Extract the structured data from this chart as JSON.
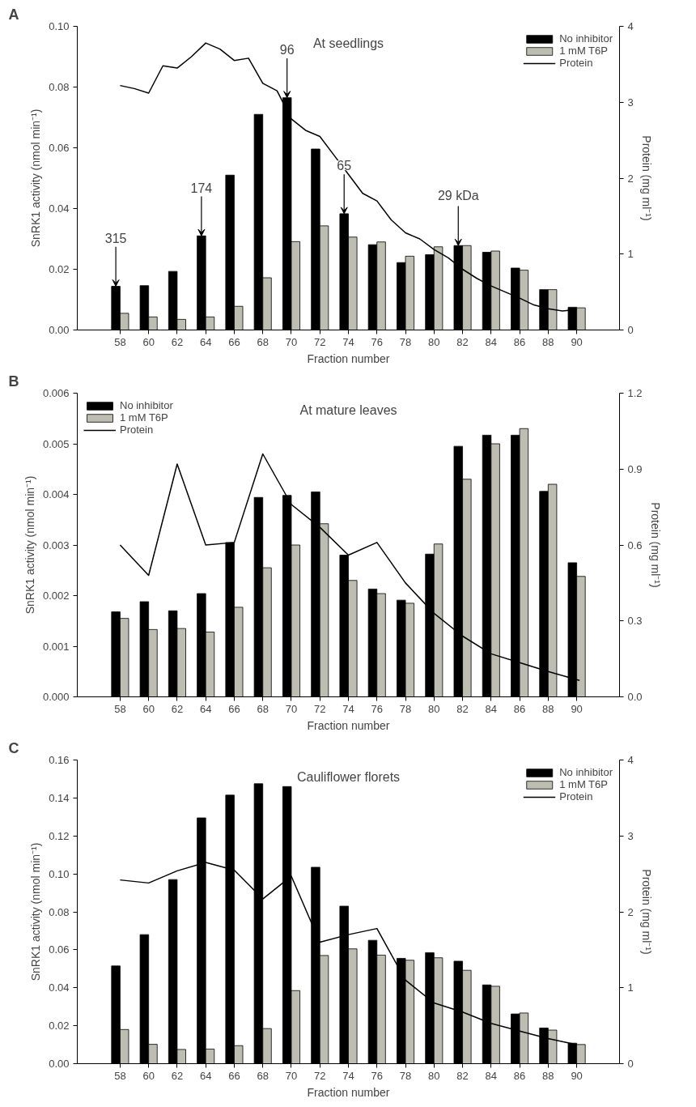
{
  "chart_data": [
    {
      "type": "bar",
      "title": "At seedlings",
      "xlabel": "Fraction number",
      "ylabel": "SnRK1 activity (nmol min⁻¹)",
      "y2label": "Protein (mg ml⁻¹)",
      "annotations": [
        "A",
        {
          "text": "315",
          "x": 57.7,
          "y": 0.0144
        },
        {
          "text": "174",
          "x": 63.7,
          "y": 0.031
        },
        {
          "text": "96",
          "x": 69.7,
          "y": 0.0765
        },
        {
          "text": "65",
          "x": 73.7,
          "y": 0.0383
        },
        {
          "text": "29 kDa",
          "x": 81.7,
          "y": 0.0278
        }
      ],
      "x": [
        58,
        60,
        62,
        64,
        66,
        68,
        70,
        72,
        74,
        76,
        78,
        80,
        82,
        84,
        86,
        88,
        90
      ],
      "xlim": [
        55,
        93
      ],
      "xticks": [
        58,
        60,
        62,
        64,
        66,
        68,
        70,
        72,
        74,
        76,
        78,
        80,
        82,
        84,
        86,
        88,
        90
      ],
      "ylim": [
        0,
        0.1
      ],
      "yticks": [
        {
          "value": 0,
          "label": "0.00"
        },
        {
          "value": 0.02,
          "label": "0.02"
        },
        {
          "value": 0.04,
          "label": "0.04"
        },
        {
          "value": 0.06,
          "label": "0.06"
        },
        {
          "value": 0.08,
          "label": "0.08"
        },
        {
          "value": 0.1,
          "label": "0.10"
        }
      ],
      "y2lim": [
        0,
        4
      ],
      "y2ticks": [
        0,
        1,
        2,
        3,
        4
      ],
      "legend": "top right",
      "grid": false,
      "series": [
        {
          "name": "No inhibitor",
          "color": "#000000",
          "values": [
            0.0144,
            0.0146,
            0.0193,
            0.031,
            0.051,
            0.071,
            0.0765,
            0.0596,
            0.0383,
            0.0281,
            0.0222,
            0.0248,
            0.0278,
            0.0256,
            0.0204,
            0.0133,
            0.0075
          ]
        },
        {
          "name": "1 mM T6P",
          "color": "#bdbdb1",
          "values": [
            0.0055,
            0.0043,
            0.0035,
            0.0043,
            0.0078,
            0.0172,
            0.0291,
            0.0343,
            0.0306,
            0.029,
            0.0243,
            0.0274,
            0.0278,
            0.026,
            0.0197,
            0.0133,
            0.0073
          ]
        },
        {
          "name": "Protein",
          "type": "line",
          "axis": "y2",
          "color": "#000000",
          "x": [
            58,
            59,
            60,
            61,
            62,
            63,
            64,
            65,
            66,
            67,
            68,
            69,
            70,
            71,
            72,
            73,
            74,
            75,
            76,
            77,
            78,
            79,
            80,
            81,
            82,
            83,
            84,
            85,
            86,
            87,
            88,
            89,
            90
          ],
          "values": [
            3.22,
            3.18,
            3.12,
            3.48,
            3.45,
            3.6,
            3.78,
            3.7,
            3.55,
            3.58,
            3.25,
            3.15,
            2.78,
            2.63,
            2.55,
            2.3,
            2.05,
            1.8,
            1.7,
            1.45,
            1.28,
            1.2,
            1.06,
            0.95,
            0.8,
            0.68,
            0.58,
            0.5,
            0.42,
            0.33,
            0.28,
            0.25,
            0.27
          ]
        }
      ]
    },
    {
      "type": "bar",
      "title": "At mature leaves",
      "xlabel": "Fraction number",
      "ylabel": "SnRK1 activity (nmol min⁻¹)",
      "y2label": "Protein (mg ml⁻¹)",
      "annotations": [
        "B"
      ],
      "x": [
        58,
        60,
        62,
        64,
        66,
        68,
        70,
        72,
        74,
        76,
        78,
        80,
        82,
        84,
        86,
        88,
        90
      ],
      "xlim": [
        55,
        93
      ],
      "xticks": [
        58,
        60,
        62,
        64,
        66,
        68,
        70,
        72,
        74,
        76,
        78,
        80,
        82,
        84,
        86,
        88,
        90
      ],
      "ylim": [
        0,
        0.006
      ],
      "yticks": [
        {
          "value": 0,
          "label": "0.000"
        },
        {
          "value": 0.001,
          "label": "0.001"
        },
        {
          "value": 0.002,
          "label": "0.002"
        },
        {
          "value": 0.003,
          "label": "0.003"
        },
        {
          "value": 0.004,
          "label": "0.004"
        },
        {
          "value": 0.005,
          "label": "0.005"
        },
        {
          "value": 0.006,
          "label": "0.006"
        }
      ],
      "y2lim": [
        0,
        1.2
      ],
      "y2ticks": [
        {
          "value": 0,
          "label": "0.0"
        },
        0.3,
        0.6,
        0.9,
        1.2
      ],
      "legend": "top left",
      "grid": false,
      "series": [
        {
          "name": "No inhibitor",
          "color": "#000000",
          "values": [
            0.00168,
            0.00188,
            0.0017,
            0.00204,
            0.00305,
            0.00394,
            0.00398,
            0.00405,
            0.0028,
            0.00213,
            0.00191,
            0.00282,
            0.00495,
            0.00517,
            0.00517,
            0.00406,
            0.00265
          ]
        },
        {
          "name": "1 mM T6P",
          "color": "#bdbdb1",
          "values": [
            0.00155,
            0.00133,
            0.00135,
            0.00128,
            0.00177,
            0.00255,
            0.003,
            0.00342,
            0.0023,
            0.00204,
            0.00185,
            0.00302,
            0.0043,
            0.005,
            0.0053,
            0.0042,
            0.00238
          ]
        },
        {
          "name": "Protein",
          "type": "line",
          "axis": "y2",
          "color": "#000000",
          "x": [
            58,
            60,
            62,
            64,
            66,
            68,
            70,
            72,
            74,
            76,
            78,
            80,
            82,
            84,
            86,
            88,
            90.2
          ],
          "values": [
            0.6,
            0.48,
            0.92,
            0.6,
            0.61,
            0.96,
            0.76,
            0.67,
            0.56,
            0.61,
            0.45,
            0.33,
            0.24,
            0.17,
            0.135,
            0.1,
            0.065
          ]
        }
      ]
    },
    {
      "type": "bar",
      "title": "Cauliflower florets",
      "xlabel": "Fraction number",
      "ylabel": "SnRK1 activity (nmol min⁻¹)",
      "y2label": "Protein (mg ml⁻¹)",
      "annotations": [
        "C"
      ],
      "x": [
        58,
        60,
        62,
        64,
        66,
        68,
        70,
        72,
        74,
        76,
        78,
        80,
        82,
        84,
        86,
        88,
        90
      ],
      "xlim": [
        55,
        93
      ],
      "xticks": [
        58,
        60,
        62,
        64,
        66,
        68,
        70,
        72,
        74,
        76,
        78,
        80,
        82,
        84,
        86,
        88,
        90
      ],
      "ylim": [
        0,
        0.16
      ],
      "yticks": [
        {
          "value": 0,
          "label": "0.00"
        },
        {
          "value": 0.02,
          "label": "0.02"
        },
        {
          "value": 0.04,
          "label": "0.04"
        },
        {
          "value": 0.06,
          "label": "0.06"
        },
        {
          "value": 0.08,
          "label": "0.08"
        },
        {
          "value": 0.1,
          "label": "0.10"
        },
        {
          "value": 0.12,
          "label": "0.12"
        },
        {
          "value": 0.14,
          "label": "0.14"
        },
        {
          "value": 0.16,
          "label": "0.16"
        }
      ],
      "y2lim": [
        0,
        4
      ],
      "y2ticks": [
        0,
        1,
        2,
        3,
        4
      ],
      "legend": "top right",
      "grid": false,
      "series": [
        {
          "name": "No inhibitor",
          "color": "#000000",
          "values": [
            0.0515,
            0.068,
            0.097,
            0.1295,
            0.1415,
            0.1475,
            0.146,
            0.1035,
            0.083,
            0.065,
            0.0555,
            0.0585,
            0.054,
            0.0415,
            0.0262,
            0.0188,
            0.0108
          ]
        },
        {
          "name": "1 mM T6P",
          "color": "#bdbdb1",
          "values": [
            0.018,
            0.0102,
            0.0075,
            0.0077,
            0.0095,
            0.0185,
            0.0385,
            0.057,
            0.0605,
            0.0572,
            0.0545,
            0.0558,
            0.0492,
            0.0408,
            0.0267,
            0.0177,
            0.0101
          ]
        },
        {
          "name": "Protein",
          "type": "line",
          "axis": "y2",
          "color": "#000000",
          "x": [
            58,
            60,
            62,
            64,
            66,
            68,
            70,
            72,
            74,
            76,
            78,
            80,
            82,
            84,
            86,
            88,
            90
          ],
          "values": [
            2.42,
            2.38,
            2.54,
            2.65,
            2.55,
            2.17,
            2.47,
            1.6,
            1.7,
            1.78,
            1.1,
            0.8,
            0.68,
            0.53,
            0.43,
            0.33,
            0.25
          ]
        }
      ]
    }
  ]
}
